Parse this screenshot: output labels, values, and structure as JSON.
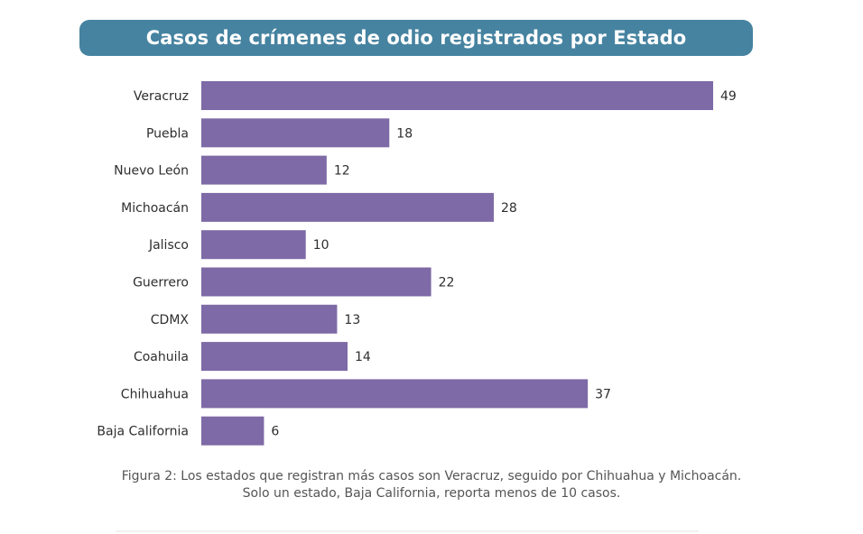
{
  "chart_data": {
    "type": "bar",
    "orientation": "horizontal",
    "title": "Casos de crímenes de odio registrados por Estado",
    "categories": [
      "Veracruz",
      "Puebla",
      "Nuevo León",
      "Michoacán",
      "Jalisco",
      "Guerrero",
      "CDMX",
      "Coahuila",
      "Chihuahua",
      "Baja California"
    ],
    "values": [
      49,
      18,
      12,
      28,
      10,
      22,
      13,
      14,
      37,
      6
    ],
    "value_labels": [
      "49",
      "18",
      "12",
      "28",
      "10",
      "22",
      "13",
      "14",
      "37",
      "6"
    ],
    "bar_color": "#7e6aa6",
    "title_bg_color": "#4683a0",
    "xlim": [
      0,
      49
    ],
    "grid": false,
    "legend": "none"
  },
  "caption": {
    "line1": "Figura 2: Los estados que registran más casos son Veracruz, seguido por Chihuahua y Michoacán.",
    "line2": "Solo un estado, Baja California, reporta menos de 10 casos."
  }
}
